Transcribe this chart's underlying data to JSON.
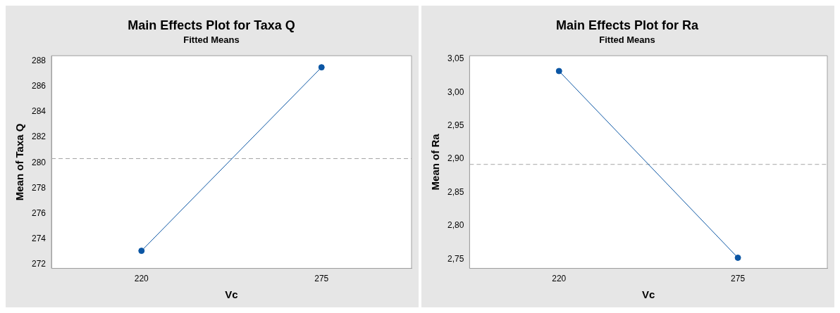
{
  "chart_data": [
    {
      "type": "line",
      "title": "Main Effects Plot for Taxa Q",
      "subtitle": "Fitted Means",
      "xlabel": "Vc",
      "ylabel": "Mean of Taxa Q",
      "categories": [
        "220",
        "275"
      ],
      "series": [
        {
          "color": "#0b56a4",
          "values": [
            273.08,
            287.49
          ]
        }
      ],
      "ylim": [
        271.7,
        288.4
      ],
      "yticks": [
        272,
        274,
        276,
        278,
        280,
        282,
        284,
        286,
        288
      ],
      "grid": false,
      "legend": false,
      "marker": "circle",
      "line_style": "solid",
      "ref_lines": [
        {
          "axis": "y",
          "value": 280.32,
          "color": "#a6a6a6",
          "line_style": "dashed"
        }
      ]
    },
    {
      "type": "line",
      "title": "Main Effects Plot for Ra",
      "subtitle": "Fitted Means",
      "xlabel": "Vc",
      "ylabel": "Mean of Ra",
      "categories": [
        "220",
        "275"
      ],
      "series": [
        {
          "color": "#0b56a4",
          "values": [
            3.032,
            2.752
          ]
        }
      ],
      "ylim": [
        2.736,
        3.055
      ],
      "yticks": [
        {
          "value": 2.75,
          "label": "2,75"
        },
        {
          "value": 2.8,
          "label": "2,80"
        },
        {
          "value": 2.85,
          "label": "2,85"
        },
        {
          "value": 2.9,
          "label": "2,90"
        },
        {
          "value": 2.95,
          "label": "2,95"
        },
        {
          "value": 3.0,
          "label": "3,00"
        },
        {
          "value": 3.05,
          "label": "3,05"
        }
      ],
      "grid": false,
      "legend": false,
      "marker": "circle",
      "line_style": "solid",
      "ref_lines": [
        {
          "axis": "y",
          "value": 2.892,
          "color": "#a6a6a6",
          "line_style": "dashed"
        }
      ]
    }
  ]
}
